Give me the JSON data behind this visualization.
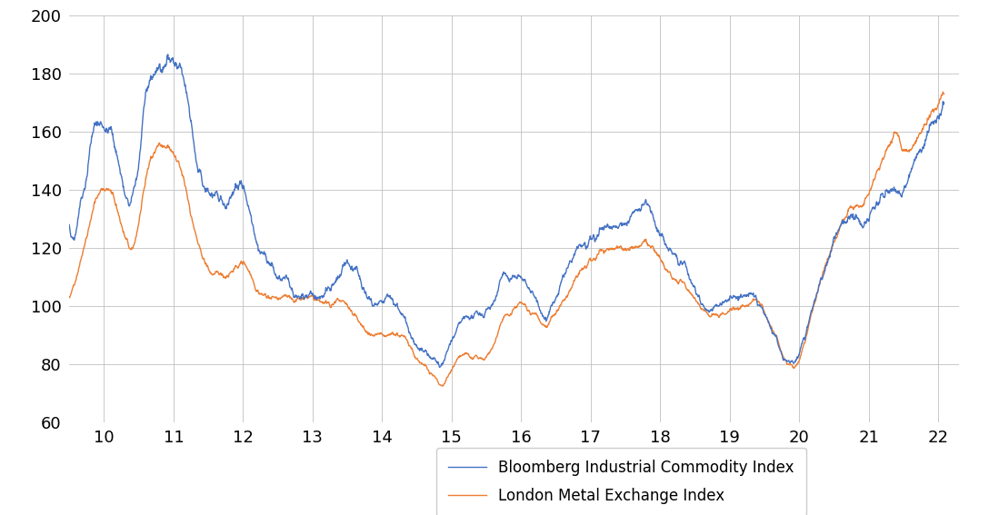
{
  "blue_color": "#4472C4",
  "orange_color": "#ED7D31",
  "background_color": "#FFFFFF",
  "grid_color": "#C0C0C0",
  "ylim": [
    60,
    200
  ],
  "yticks": [
    60,
    80,
    100,
    120,
    140,
    160,
    180,
    200
  ],
  "xticks": [
    10,
    11,
    12,
    13,
    14,
    15,
    16,
    17,
    18,
    19,
    20,
    21,
    22
  ],
  "xlim": [
    9.5,
    22.3
  ],
  "legend_labels": [
    "Bloomberg Industrial Commodity Index",
    "London Metal Exchange Index"
  ],
  "line_width": 1.0,
  "blue_trend": [
    128,
    122,
    135,
    145,
    158,
    165,
    168,
    165,
    162,
    155,
    148,
    140,
    138,
    145,
    158,
    168,
    172,
    175,
    180,
    184,
    181,
    176,
    170,
    162,
    152,
    143,
    138,
    135,
    133,
    131,
    132,
    136,
    139,
    141,
    138,
    133,
    128,
    124,
    122,
    118,
    115,
    114,
    113,
    112,
    112,
    113,
    113,
    112,
    112,
    114,
    116,
    117,
    120,
    122,
    119,
    116,
    112,
    108,
    104,
    101,
    100,
    99,
    98,
    96,
    93,
    89,
    86,
    83,
    80,
    78,
    76,
    75,
    78,
    82,
    85,
    87,
    87,
    87,
    86,
    86,
    88,
    91,
    95,
    100,
    100,
    101,
    103,
    101,
    99,
    97,
    95,
    94,
    96,
    99,
    102,
    106,
    107,
    108,
    110,
    111,
    112,
    113,
    115,
    116,
    117,
    118,
    120,
    121,
    122,
    122,
    123,
    121,
    118,
    115,
    111,
    108,
    106,
    104,
    103,
    101,
    98,
    96,
    95,
    96,
    97,
    98,
    100,
    102,
    103,
    102,
    101,
    100,
    97,
    94,
    91,
    87,
    82,
    80,
    79,
    81,
    87,
    94,
    100,
    107,
    112,
    117,
    122,
    126,
    128,
    130,
    132,
    133,
    134,
    135,
    136,
    138,
    140,
    142,
    144,
    146,
    148,
    152,
    156,
    160,
    163,
    165,
    167,
    170
  ],
  "orange_trend": [
    103,
    108,
    116,
    124,
    132,
    139,
    143,
    144,
    142,
    138,
    132,
    126,
    122,
    128,
    138,
    148,
    153,
    155,
    156,
    156,
    154,
    150,
    144,
    136,
    129,
    122,
    118,
    115,
    114,
    113,
    113,
    116,
    118,
    119,
    117,
    114,
    111,
    110,
    109,
    109,
    108,
    108,
    107,
    107,
    108,
    109,
    110,
    110,
    110,
    110,
    110,
    110,
    110,
    109,
    107,
    105,
    103,
    101,
    100,
    99,
    97,
    96,
    96,
    95,
    94,
    91,
    88,
    84,
    81,
    78,
    76,
    74,
    76,
    79,
    82,
    83,
    83,
    82,
    82,
    82,
    84,
    87,
    91,
    96,
    97,
    98,
    100,
    99,
    97,
    96,
    95,
    94,
    96,
    99,
    102,
    105,
    108,
    110,
    112,
    113,
    114,
    115,
    116,
    117,
    118,
    119,
    120,
    120,
    120,
    120,
    121,
    119,
    116,
    113,
    110,
    107,
    105,
    104,
    103,
    102,
    100,
    98,
    97,
    97,
    97,
    98,
    99,
    100,
    100,
    100,
    100,
    100,
    98,
    95,
    92,
    88,
    83,
    80,
    79,
    80,
    86,
    93,
    100,
    107,
    113,
    118,
    123,
    127,
    130,
    133,
    135,
    137,
    138,
    140,
    143,
    146,
    150,
    154,
    157,
    155,
    153,
    155,
    158,
    162,
    164,
    167,
    170,
    173
  ]
}
